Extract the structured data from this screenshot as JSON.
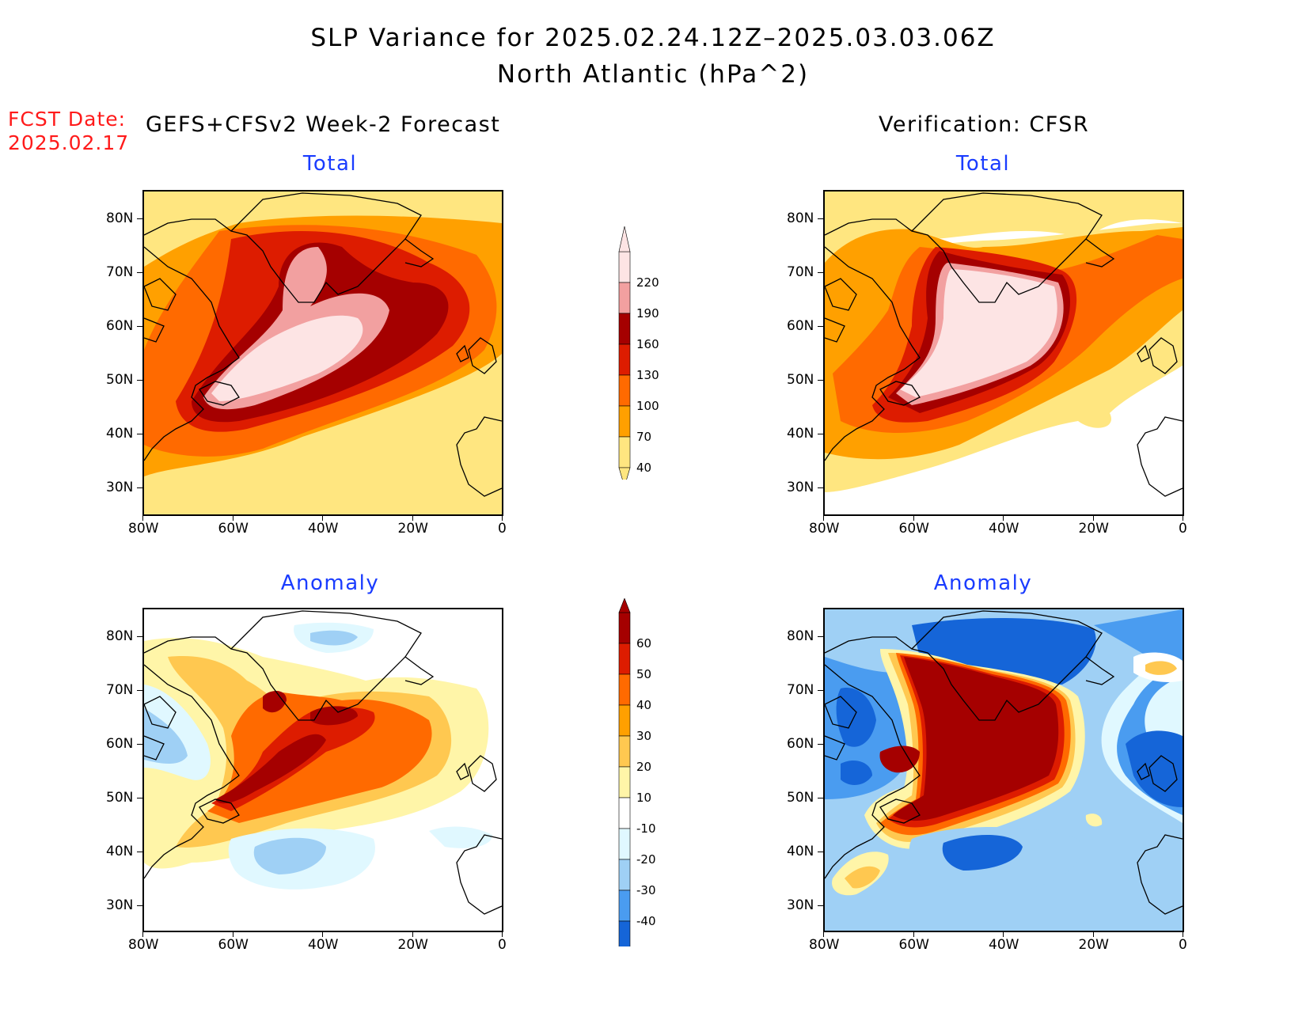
{
  "title": {
    "line1": "SLP Variance for 2025.02.24.12Z–2025.03.03.06Z",
    "line2": "North Atlantic (hPa^2)"
  },
  "forecast_date": {
    "label": "FCST Date:",
    "value": "2025.02.17"
  },
  "columns": {
    "left": "GEFS+CFSv2 Week-2 Forecast",
    "right": "Verification: CFSR"
  },
  "panels": [
    {
      "id": "forecast-total",
      "title": "Total"
    },
    {
      "id": "verification-total",
      "title": "Total"
    },
    {
      "id": "forecast-anomaly",
      "title": "Anomaly"
    },
    {
      "id": "verification-anomaly",
      "title": "Anomaly"
    }
  ],
  "axes": {
    "lat_labels": [
      "80N",
      "70N",
      "60N",
      "50N",
      "40N",
      "30N"
    ],
    "lon_labels": [
      "80W",
      "60W",
      "40W",
      "20W",
      "0"
    ]
  },
  "colorbars": {
    "total": {
      "levels": [
        "220",
        "190",
        "160",
        "130",
        "100",
        "70",
        "40"
      ],
      "colors": [
        "#fde4e4",
        "#f2a0a0",
        "#a50000",
        "#dd1c00",
        "#ff6a00",
        "#ffa000",
        "#ffe680"
      ]
    },
    "anomaly": {
      "levels": [
        "60",
        "50",
        "40",
        "30",
        "20",
        "10",
        "-10",
        "-20",
        "-30",
        "-40"
      ],
      "colors": [
        "#a50000",
        "#dd1c00",
        "#ff6a00",
        "#ffa000",
        "#ffc850",
        "#fff5a8",
        "#ffffff",
        "#e0f8ff",
        "#9fd0f5",
        "#4a9cf0",
        "#1565d8"
      ]
    }
  }
}
